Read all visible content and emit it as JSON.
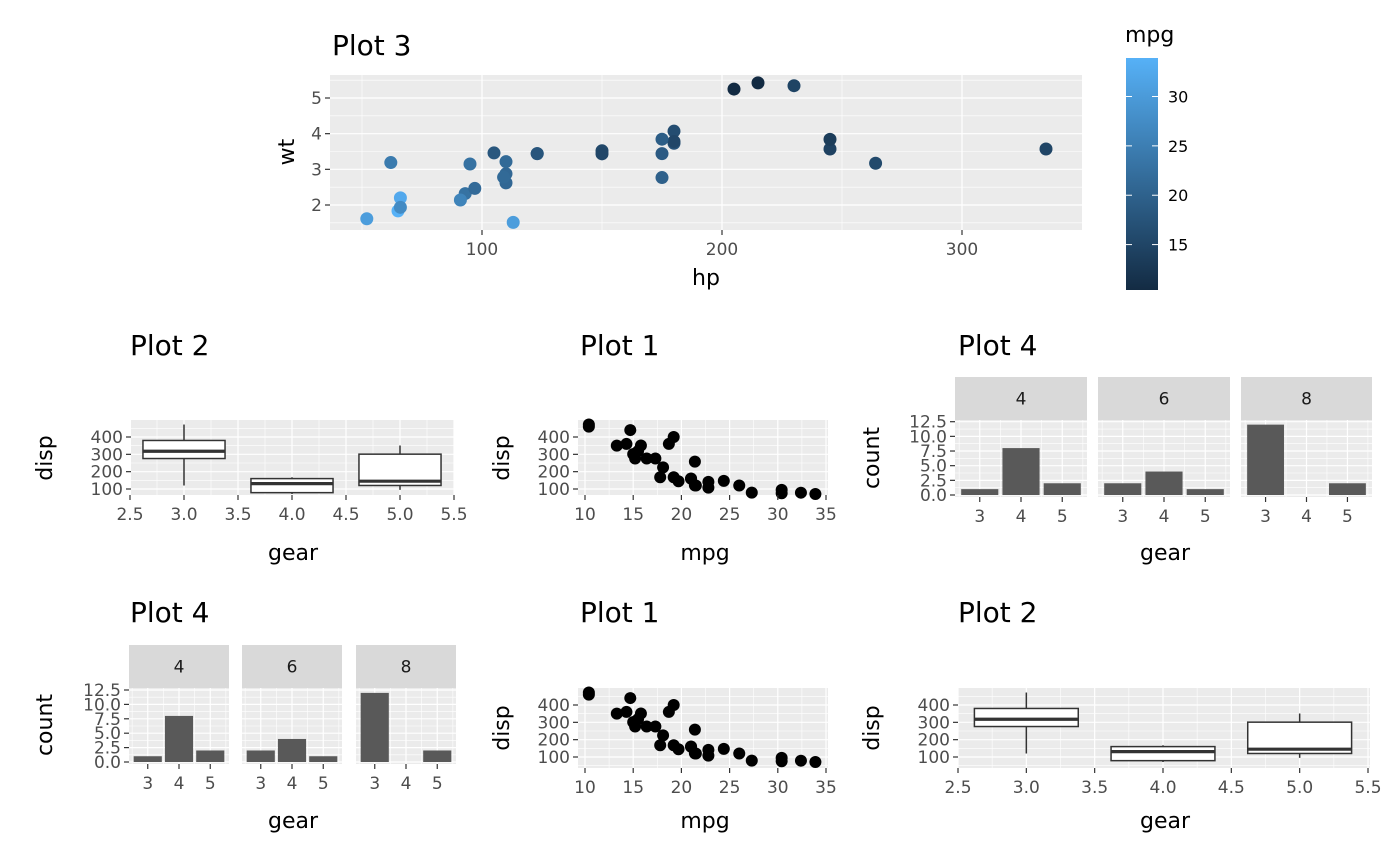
{
  "colors": {
    "panel": "#EBEBEB",
    "grid": "#FFFFFF",
    "strip": "#D9D9D9",
    "bar": "#595959",
    "point": "#000000",
    "box_line": "#333333",
    "tick_label": "#4D4D4D"
  },
  "chart_data": [
    {
      "type": "scatter",
      "title": "Plot 3",
      "xlabel": "hp",
      "ylabel": "wt",
      "xticks": [
        100,
        200,
        300
      ],
      "xtick_labels": [
        "100",
        "200",
        "300"
      ],
      "yticks": [
        2,
        3,
        4,
        5
      ],
      "ytick_labels": [
        "2",
        "3",
        "4",
        "5"
      ],
      "x": [
        110,
        110,
        93,
        110,
        175,
        105,
        245,
        62,
        95,
        123,
        123,
        180,
        180,
        180,
        205,
        215,
        230,
        66,
        52,
        65,
        97,
        150,
        150,
        245,
        175,
        66,
        91,
        113,
        264,
        175,
        335,
        109
      ],
      "y": [
        2.62,
        2.875,
        2.32,
        3.215,
        3.44,
        3.46,
        3.57,
        3.19,
        3.15,
        3.44,
        3.44,
        4.07,
        3.73,
        3.78,
        5.25,
        5.424,
        5.345,
        2.2,
        1.615,
        1.835,
        2.465,
        3.52,
        3.435,
        3.84,
        3.845,
        1.935,
        2.14,
        1.513,
        3.17,
        2.77,
        3.57,
        2.78
      ],
      "color": [
        21,
        21,
        22.8,
        21.4,
        18.7,
        18.1,
        14.3,
        24.4,
        22.8,
        19.2,
        17.8,
        16.4,
        17.3,
        15.2,
        10.4,
        10.4,
        14.7,
        32.4,
        30.4,
        33.9,
        21.5,
        15.5,
        15.2,
        13.3,
        19.2,
        27.3,
        26,
        30.4,
        15.8,
        19.7,
        15,
        21.4
      ],
      "legend": {
        "title": "mpg",
        "ticks": [
          15,
          20,
          25,
          30
        ],
        "tick_labels": [
          "15",
          "20",
          "25",
          "30"
        ],
        "range": [
          10.4,
          33.9
        ],
        "low": "#132B43",
        "high": "#56B1F7",
        "placement": "right"
      }
    },
    {
      "type": "box",
      "title": "Plot 2",
      "xlabel": "gear",
      "ylabel": "disp",
      "xticks": [
        2.5,
        3,
        3.5,
        4,
        4.5,
        5,
        5.5
      ],
      "xtick_labels": [
        "2.5",
        "3.0",
        "3.5",
        "4.0",
        "4.5",
        "5.0",
        "5.5"
      ],
      "yticks": [
        100,
        200,
        300,
        400
      ],
      "ytick_labels": [
        "100",
        "200",
        "300",
        "400"
      ],
      "boxes": [
        {
          "x": 3,
          "lower": 120.1,
          "q1": 275.8,
          "median": 318,
          "q3": 380,
          "upper": 472
        },
        {
          "x": 4,
          "lower": 71.1,
          "q1": 78.925,
          "median": 130.9,
          "q3": 160,
          "upper": 167.6
        },
        {
          "x": 5,
          "lower": 95.1,
          "q1": 120.3,
          "median": 145,
          "q3": 301,
          "upper": 351
        }
      ]
    },
    {
      "type": "scatter",
      "title": "Plot 1",
      "xlabel": "mpg",
      "ylabel": "disp",
      "xticks": [
        10,
        15,
        20,
        25,
        30,
        35
      ],
      "xtick_labels": [
        "10",
        "15",
        "20",
        "25",
        "30",
        "35"
      ],
      "yticks": [
        100,
        200,
        300,
        400
      ],
      "ytick_labels": [
        "100",
        "200",
        "300",
        "400"
      ],
      "x": [
        21,
        21,
        22.8,
        21.4,
        18.7,
        18.1,
        14.3,
        24.4,
        22.8,
        19.2,
        17.8,
        16.4,
        17.3,
        15.2,
        10.4,
        10.4,
        14.7,
        32.4,
        30.4,
        33.9,
        21.5,
        15.5,
        15.2,
        13.3,
        19.2,
        27.3,
        26,
        30.4,
        15.8,
        19.7,
        15,
        21.4
      ],
      "y": [
        160,
        160,
        108,
        258,
        360,
        225,
        360,
        146.7,
        140.8,
        167.6,
        167.6,
        275.8,
        275.8,
        275.8,
        472,
        460,
        440,
        78.7,
        75.7,
        71.1,
        120.1,
        318,
        304,
        350,
        400,
        79,
        120.3,
        95.1,
        351,
        145,
        301,
        121
      ]
    },
    {
      "type": "bar",
      "title": "Plot 4",
      "xlabel": "gear",
      "ylabel": "count",
      "xticks": [
        3,
        4,
        5
      ],
      "xtick_labels": [
        "3",
        "4",
        "5"
      ],
      "yticks": [
        0,
        2.5,
        5,
        7.5,
        10,
        12.5
      ],
      "ytick_labels": [
        "0.0",
        "2.5",
        "5.0",
        "7.5",
        "10.0",
        "12.5"
      ],
      "facets": [
        {
          "label": "4",
          "categories": [
            3,
            4,
            5
          ],
          "values": [
            1,
            8,
            2
          ]
        },
        {
          "label": "6",
          "categories": [
            3,
            4,
            5
          ],
          "values": [
            2,
            4,
            1
          ]
        },
        {
          "label": "8",
          "categories": [
            3,
            4,
            5
          ],
          "values": [
            12,
            0,
            2
          ]
        }
      ]
    },
    {
      "type": "bar",
      "title": "Plot 4",
      "xlabel": "gear",
      "ylabel": "count",
      "xticks": [
        3,
        4,
        5
      ],
      "xtick_labels": [
        "3",
        "4",
        "5"
      ],
      "yticks": [
        0,
        2.5,
        5,
        7.5,
        10,
        12.5
      ],
      "ytick_labels": [
        "0.0",
        "2.5",
        "5.0",
        "7.5",
        "10.0",
        "12.5"
      ],
      "facets": [
        {
          "label": "4",
          "categories": [
            3,
            4,
            5
          ],
          "values": [
            1,
            8,
            2
          ]
        },
        {
          "label": "6",
          "categories": [
            3,
            4,
            5
          ],
          "values": [
            2,
            4,
            1
          ]
        },
        {
          "label": "8",
          "categories": [
            3,
            4,
            5
          ],
          "values": [
            12,
            0,
            2
          ]
        }
      ]
    },
    {
      "type": "scatter",
      "title": "Plot 1",
      "xlabel": "mpg",
      "ylabel": "disp",
      "xticks": [
        10,
        15,
        20,
        25,
        30,
        35
      ],
      "xtick_labels": [
        "10",
        "15",
        "20",
        "25",
        "30",
        "35"
      ],
      "yticks": [
        100,
        200,
        300,
        400
      ],
      "ytick_labels": [
        "100",
        "200",
        "300",
        "400"
      ],
      "x": [
        21,
        21,
        22.8,
        21.4,
        18.7,
        18.1,
        14.3,
        24.4,
        22.8,
        19.2,
        17.8,
        16.4,
        17.3,
        15.2,
        10.4,
        10.4,
        14.7,
        32.4,
        30.4,
        33.9,
        21.5,
        15.5,
        15.2,
        13.3,
        19.2,
        27.3,
        26,
        30.4,
        15.8,
        19.7,
        15,
        21.4
      ],
      "y": [
        160,
        160,
        108,
        258,
        360,
        225,
        360,
        146.7,
        140.8,
        167.6,
        167.6,
        275.8,
        275.8,
        275.8,
        472,
        460,
        440,
        78.7,
        75.7,
        71.1,
        120.1,
        318,
        304,
        350,
        400,
        79,
        120.3,
        95.1,
        351,
        145,
        301,
        121
      ]
    },
    {
      "type": "box",
      "title": "Plot 2",
      "xlabel": "gear",
      "ylabel": "disp",
      "xticks": [
        2.5,
        3,
        3.5,
        4,
        4.5,
        5,
        5.5
      ],
      "xtick_labels": [
        "2.5",
        "3.0",
        "3.5",
        "4.0",
        "4.5",
        "5.0",
        "5.5"
      ],
      "yticks": [
        100,
        200,
        300,
        400
      ],
      "ytick_labels": [
        "100",
        "200",
        "300",
        "400"
      ],
      "boxes": [
        {
          "x": 3,
          "lower": 120.1,
          "q1": 275.8,
          "median": 318,
          "q3": 380,
          "upper": 472
        },
        {
          "x": 4,
          "lower": 71.1,
          "q1": 78.925,
          "median": 130.9,
          "q3": 160,
          "upper": 167.6
        },
        {
          "x": 5,
          "lower": 95.1,
          "q1": 120.3,
          "median": 145,
          "q3": 301,
          "upper": 351
        }
      ]
    }
  ]
}
